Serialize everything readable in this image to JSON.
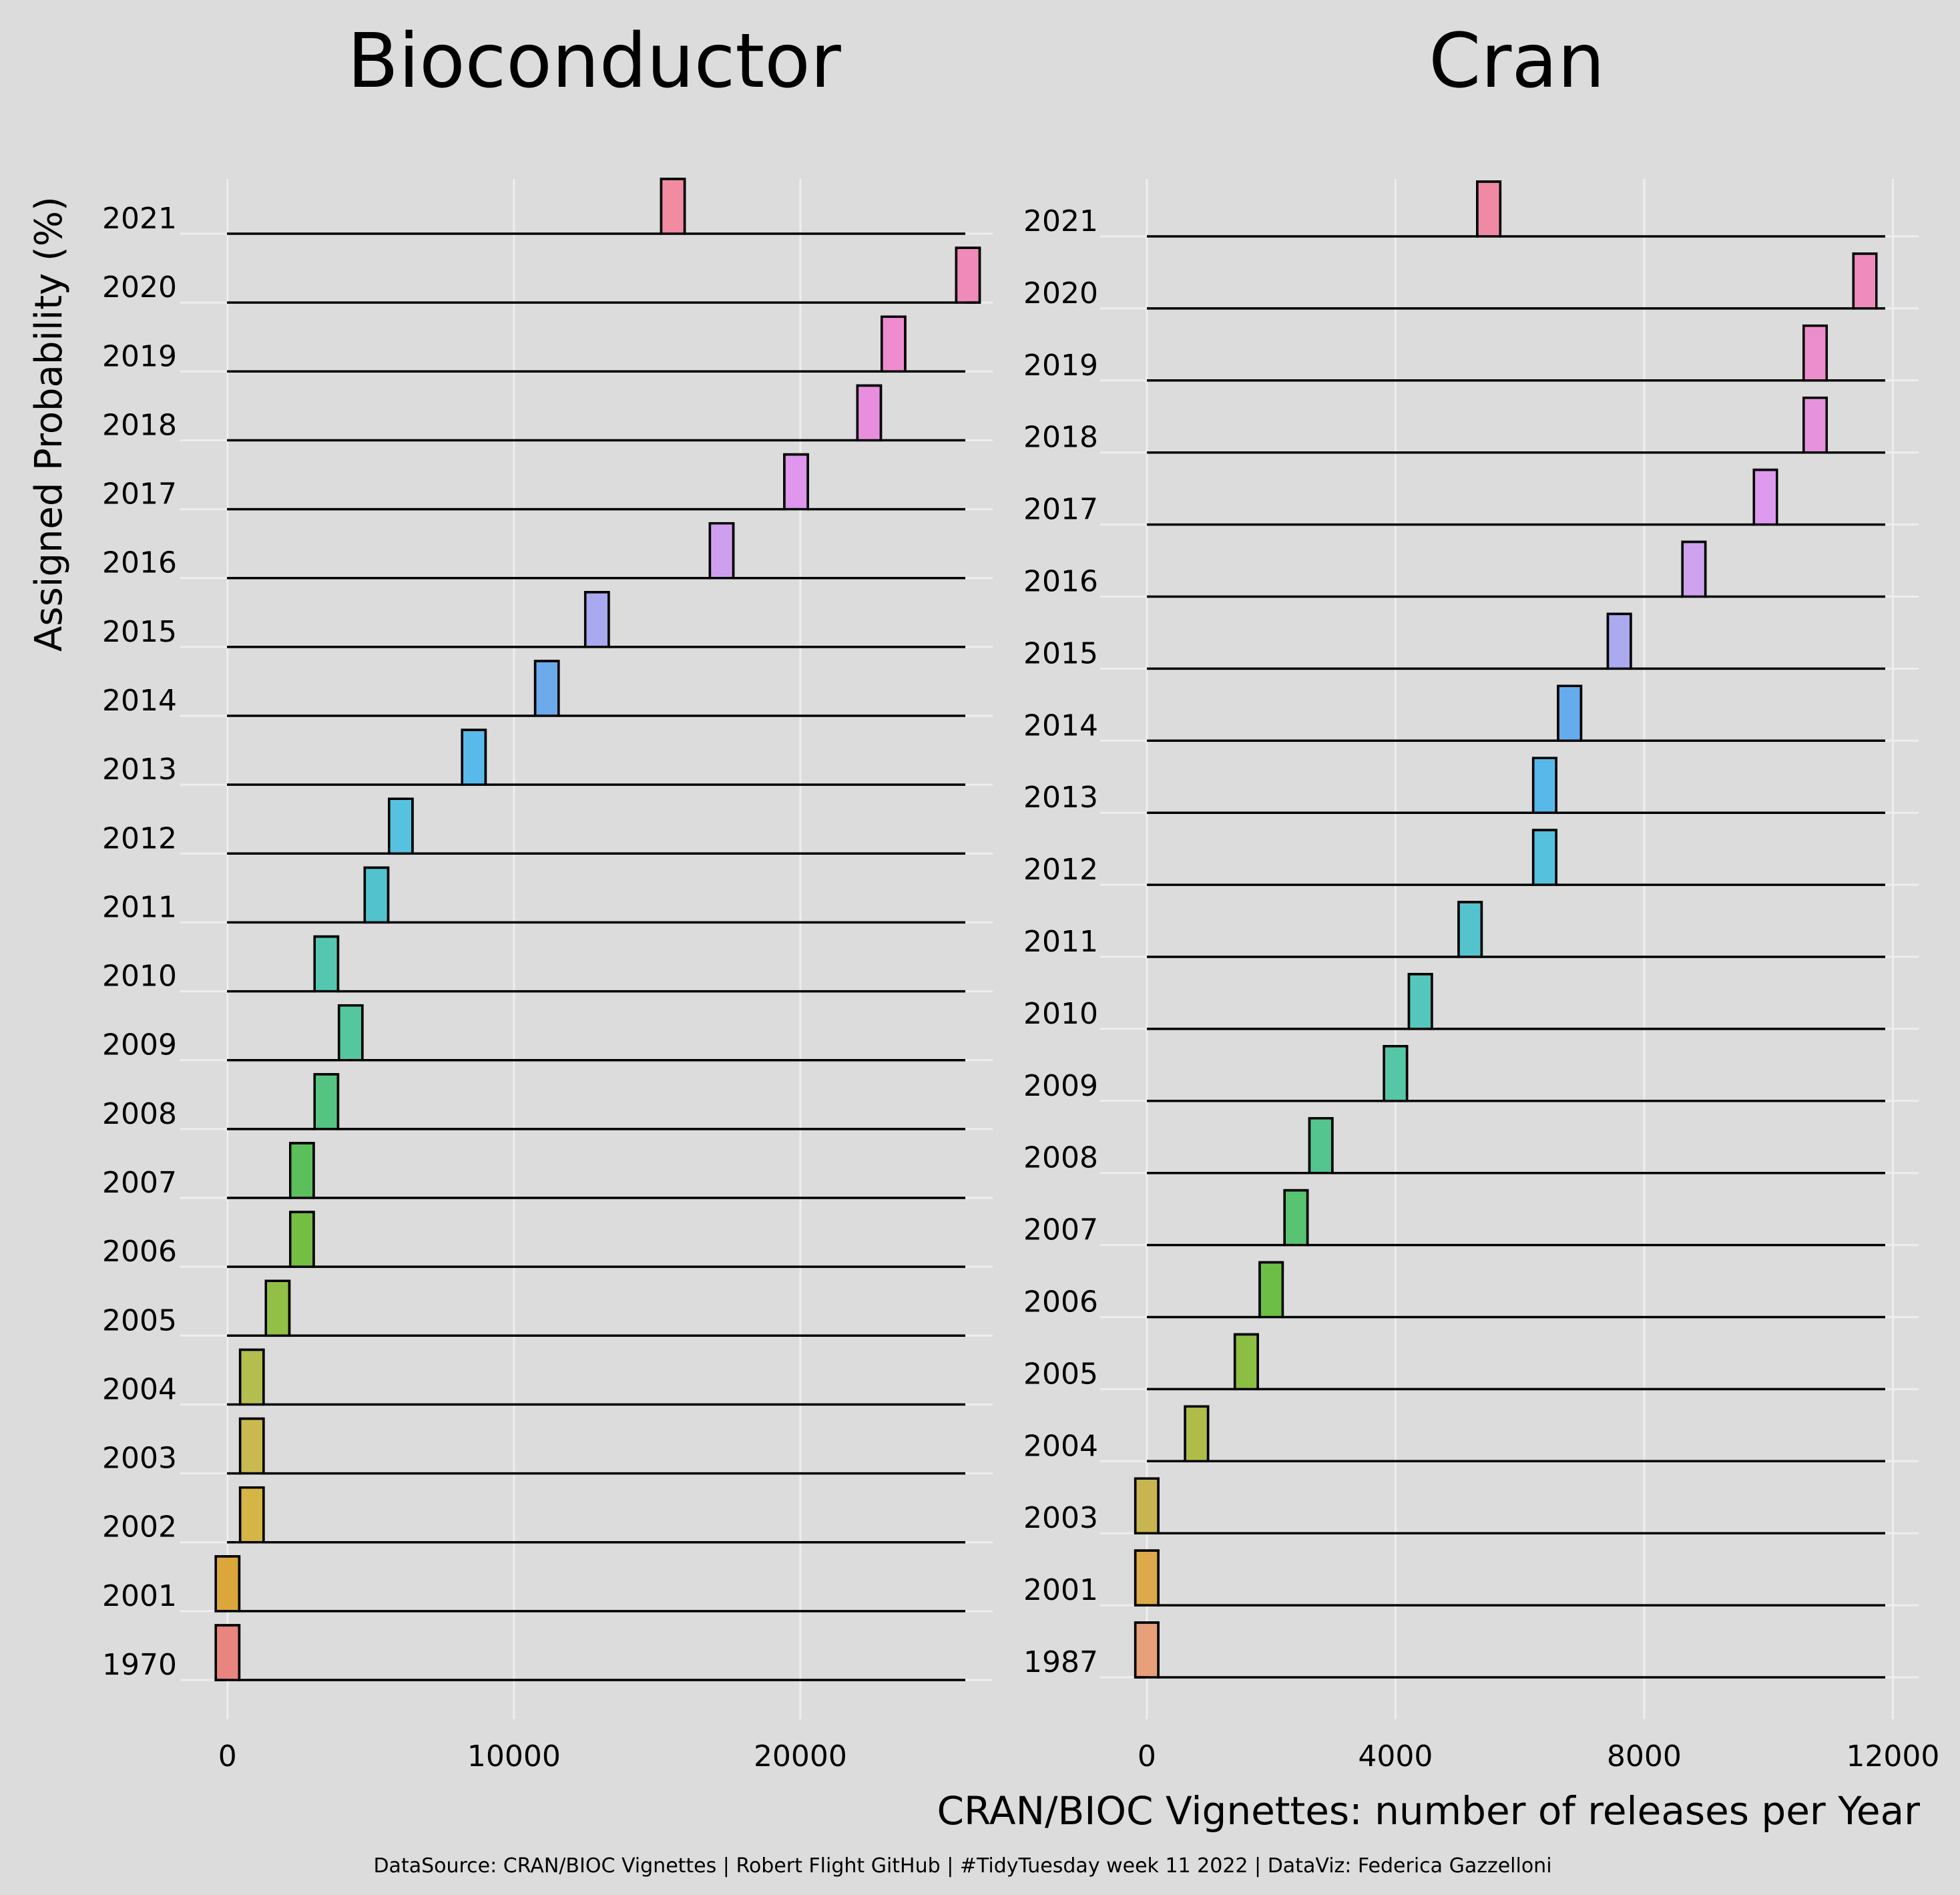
{
  "chart_data": [
    {
      "type": "ridgeline",
      "title": "Bioconductor",
      "ylabel": "Assigned Probability (%)",
      "xlim": [
        -1300,
        26900
      ],
      "xticks": [
        0,
        10000,
        20000
      ],
      "xtick_labels": [
        "0",
        "10000",
        "20000"
      ],
      "categories": [
        "1970",
        "2001",
        "2002",
        "2003",
        "2004",
        "2005",
        "2006",
        "2007",
        "2008",
        "2009",
        "2010",
        "2011",
        "2012",
        "2013",
        "2014",
        "2015",
        "2016",
        "2017",
        "2018",
        "2019",
        "2020",
        "2021"
      ],
      "values": [
        0,
        0,
        850,
        850,
        850,
        1750,
        2600,
        2600,
        3450,
        4300,
        3450,
        5200,
        6050,
        8600,
        11150,
        12900,
        17250,
        19850,
        22400,
        23250,
        25850,
        15550
      ],
      "colors": [
        "#e8857f",
        "#dba73a",
        "#d4b545",
        "#c9b950",
        "#b3be4e",
        "#92c046",
        "#72bf44",
        "#5bbf5a",
        "#55c482",
        "#55c79e",
        "#55c7b0",
        "#52c3cc",
        "#56c2e0",
        "#59b9ea",
        "#6caaec",
        "#a9a9f0",
        "#cf9fef",
        "#df96ec",
        "#e78fde",
        "#ef8ccf",
        "#f08ab8",
        "#f08ba2"
      ]
    },
    {
      "type": "ridgeline",
      "title": "Cran",
      "xlabel": "CRAN/BIOC Vignettes: number of releases per Year",
      "xlim": [
        -600,
        12500
      ],
      "xticks": [
        0,
        4000,
        8000,
        12000
      ],
      "xtick_labels": [
        "0",
        "4000",
        "8000",
        "12000"
      ],
      "categories": [
        "1987",
        "2001",
        "2003",
        "2004",
        "2005",
        "2006",
        "2007",
        "2008",
        "2009",
        "2010",
        "2011",
        "2012",
        "2013",
        "2014",
        "2015",
        "2016",
        "2017",
        "2018",
        "2019",
        "2020",
        "2021"
      ],
      "values": [
        0,
        0,
        0,
        800,
        1600,
        2000,
        2400,
        2800,
        4000,
        4400,
        5200,
        6400,
        6400,
        6800,
        7600,
        8800,
        9950,
        10750,
        10750,
        11550,
        5500
      ],
      "colors": [
        "#e8a07a",
        "#dea94a",
        "#c8b54f",
        "#b0bc48",
        "#8cbe43",
        "#6bbf45",
        "#58c472",
        "#55c590",
        "#55c6a6",
        "#55c6bb",
        "#54c3cd",
        "#56c1dd",
        "#58b8ea",
        "#65acee",
        "#abaaee",
        "#cea2ef",
        "#dd9aee",
        "#e692dc",
        "#ec8ecd",
        "#f08cbd",
        "#f08aa4"
      ]
    }
  ],
  "caption": "DataSource: CRAN/BIOC Vignettes | Robert Flight GitHub | #TidyTuesday week 11 2022 | DataViz: Federica Gazzelloni"
}
